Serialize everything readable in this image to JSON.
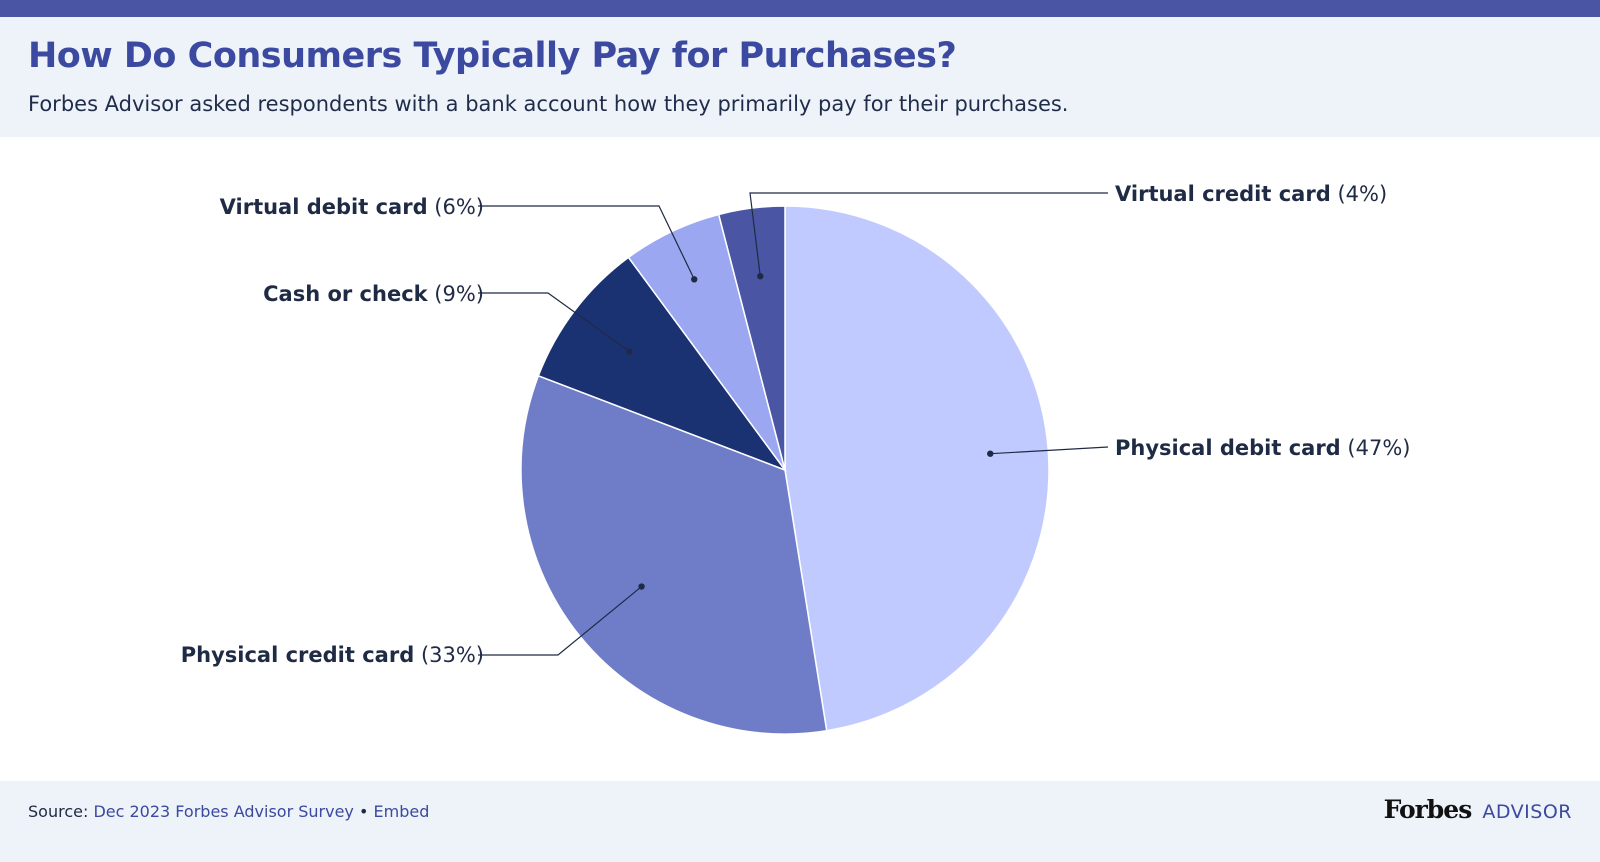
{
  "header": {
    "title": "How Do Consumers Typically Pay for Purchases?",
    "subtitle": "Forbes Advisor asked respondents with a bank account how they primarily pay for their purchases."
  },
  "chart_data": {
    "type": "pie",
    "slices": [
      {
        "name": "Physical debit card",
        "value": 47,
        "value_label": "(47%)",
        "color": "#c1caff"
      },
      {
        "name": "Physical credit card",
        "value": 33,
        "value_label": "(33%)",
        "color": "#6f7dc8"
      },
      {
        "name": "Cash or check",
        "value": 9,
        "value_label": "(9%)",
        "color": "#1b3272"
      },
      {
        "name": "Virtual debit card",
        "value": 6,
        "value_label": "(6%)",
        "color": "#9ba7f0"
      },
      {
        "name": "Virtual credit card",
        "value": 4,
        "value_label": "(4%)",
        "color": "#4a56a3"
      }
    ],
    "start": "12 o'clock",
    "direction": "clockwise"
  },
  "footer": {
    "source_prefix": "Source:",
    "source_link": "Dec 2023 Forbes Advisor Survey",
    "separator": "•",
    "embed_link": "Embed",
    "logo_forbes": "Forbes",
    "logo_advisor": "ADVISOR"
  },
  "colors": {
    "accent": "#3b4aa0",
    "topbar": "#4a56a3",
    "header_bg": "#eef2f9",
    "label_text": "#1f2a44"
  }
}
